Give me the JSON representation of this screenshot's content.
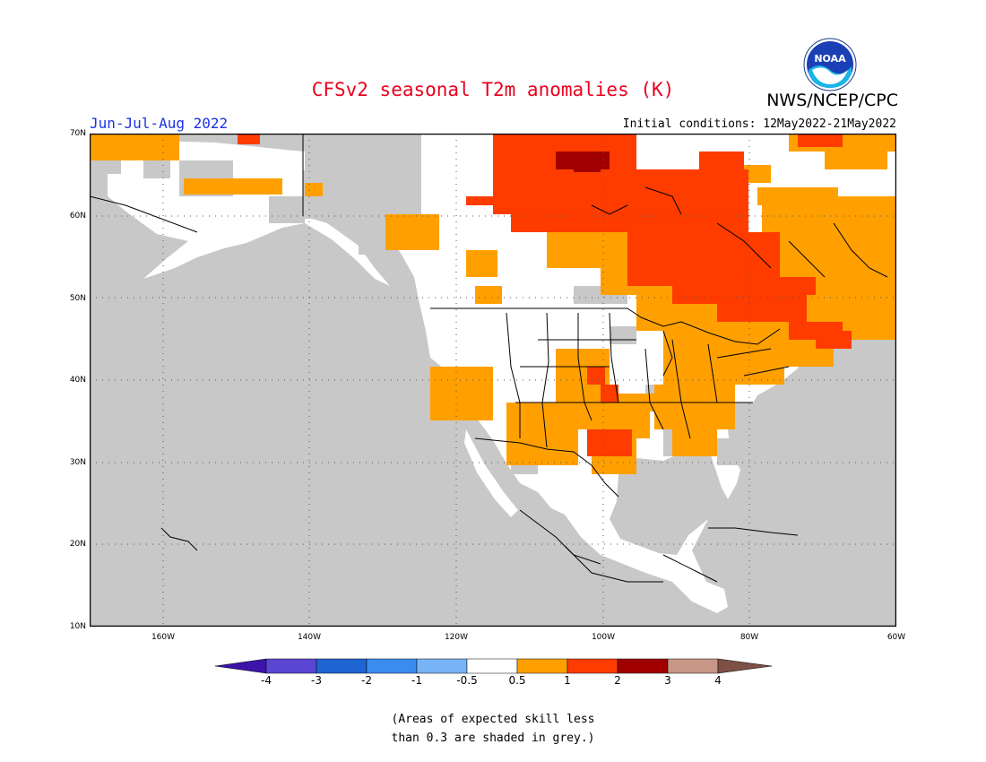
{
  "header": {
    "title": "CFSv2 seasonal T2m anomalies (K)",
    "season": "Jun-Jul-Aug 2022",
    "initial_conditions": "Initial conditions: 12May2022-21May2022",
    "agency": "NWS/NCEP/CPC",
    "logo_text": "NOAA"
  },
  "map": {
    "region": "North America",
    "lat_range": [
      10,
      70
    ],
    "lon_range": [
      -170,
      -60
    ],
    "lat_ticks": [
      "70N",
      "60N",
      "50N",
      "40N",
      "30N",
      "20N",
      "10N"
    ],
    "lon_ticks": [
      "160W",
      "140W",
      "120W",
      "100W",
      "80W",
      "60W"
    ],
    "colors": {
      "grey_low_skill": "#c8c8c8",
      "near_normal": "#ffffff",
      "plus_0_5_to_1": "#ffa000",
      "plus_1_to_2": "#ff3c00",
      "plus_2_to_3": "#a00000",
      "coastline": "#000000",
      "graticule": "#555555"
    }
  },
  "colorbar": {
    "labels": [
      "-4",
      "-3",
      "-2",
      "-1",
      "-0.5",
      "0.5",
      "1",
      "2",
      "3",
      "4"
    ],
    "colors": [
      "#3c14aa",
      "#5a46d2",
      "#1e64d2",
      "#3c8cf0",
      "#78b4f5",
      "#ffffff",
      "#ffa000",
      "#ff3c00",
      "#a00000",
      "#c89686",
      "#7d5046"
    ]
  },
  "note": {
    "line1": "(Areas of expected skill less",
    "line2": "than 0.3 are shaded in grey.)"
  }
}
